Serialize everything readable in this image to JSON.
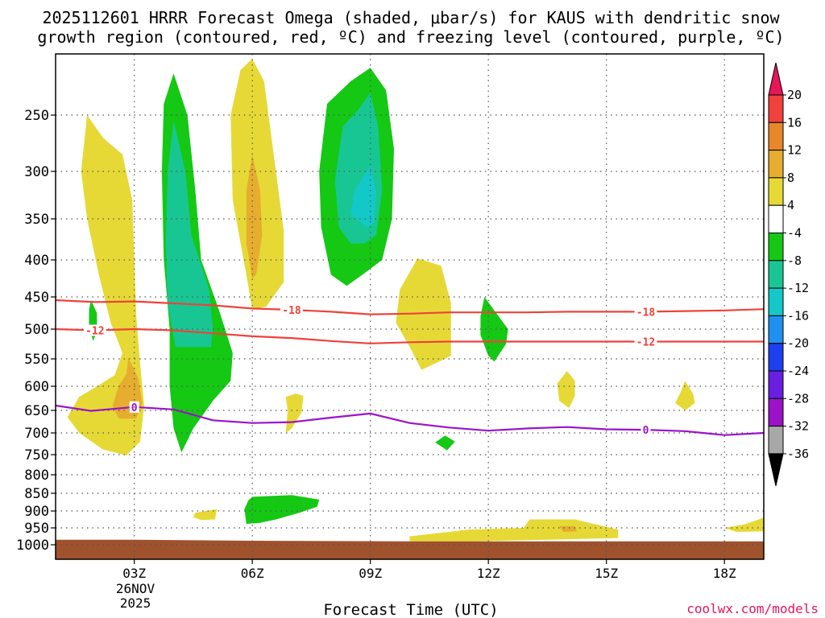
{
  "chart_data": {
    "type": "heatmap",
    "title_line1": "2025112601 HRRR Forecast Omega (shaded, μbar/s) for KAUS with dendritic snow",
    "title_line2": "growth region (contoured, red, ºC) and freezing level (contoured, purple, ºC)",
    "xlabel": "Forecast Time (UTC)",
    "date_label": [
      "26NOV",
      "2025"
    ],
    "watermark": "coolwx.com/models",
    "x_range_hours": [
      1,
      19
    ],
    "x_ticks": [
      {
        "hour": 3,
        "label": "03Z"
      },
      {
        "hour": 6,
        "label": "06Z"
      },
      {
        "hour": 9,
        "label": "09Z"
      },
      {
        "hour": 12,
        "label": "12Z"
      },
      {
        "hour": 15,
        "label": "15Z"
      },
      {
        "hour": 18,
        "label": "18Z"
      }
    ],
    "y_range_hpa": [
      1030,
      200
    ],
    "y_ticks": [
      {
        "p": 250,
        "label": "250"
      },
      {
        "p": 300,
        "label": "300"
      },
      {
        "p": 350,
        "label": "350"
      },
      {
        "p": 400,
        "label": "400"
      },
      {
        "p": 450,
        "label": "450"
      },
      {
        "p": 500,
        "label": "500"
      },
      {
        "p": 550,
        "label": "550"
      },
      {
        "p": 600,
        "label": "600"
      },
      {
        "p": 650,
        "label": "650"
      },
      {
        "p": 700,
        "label": "700"
      },
      {
        "p": 750,
        "label": "750"
      },
      {
        "p": 800,
        "label": "800"
      },
      {
        "p": 850,
        "label": "850"
      },
      {
        "p": 900,
        "label": "900"
      },
      {
        "p": 950,
        "label": "950"
      },
      {
        "p": 1000,
        "label": "1000"
      }
    ],
    "colorbar": {
      "levels": [
        {
          "label": "20",
          "color": "#e8155a"
        },
        {
          "label": "16",
          "color": "#f0413c"
        },
        {
          "label": "12",
          "color": "#e8862a"
        },
        {
          "label": "8",
          "color": "#e6ad2f"
        },
        {
          "label": "4",
          "color": "#e6d936"
        },
        {
          "label": "-4",
          "color": "#ffffff"
        },
        {
          "label": "-8",
          "color": "#14c814"
        },
        {
          "label": "-12",
          "color": "#18c694"
        },
        {
          "label": "-16",
          "color": "#13c8c8"
        },
        {
          "label": "-20",
          "color": "#1e90ef"
        },
        {
          "label": "-24",
          "color": "#1e3ff0"
        },
        {
          "label": "-28",
          "color": "#6a1ee0"
        },
        {
          "label": "-32",
          "color": "#9b12c8"
        },
        {
          "label": "-36",
          "color": "#a8a8a8"
        }
      ],
      "top_cap_color": "#e8155a",
      "bottom_cap_color": "#000000"
    },
    "contours": [
      {
        "name": "contour-minus18",
        "label": "-18",
        "color": "#f0413c",
        "points": [
          [
            1,
            455
          ],
          [
            2,
            458
          ],
          [
            3,
            457
          ],
          [
            4,
            460
          ],
          [
            5,
            463
          ],
          [
            6,
            468
          ],
          [
            7,
            470
          ],
          [
            8,
            473
          ],
          [
            9,
            477
          ],
          [
            10,
            476
          ],
          [
            11,
            474
          ],
          [
            12,
            474
          ],
          [
            13,
            474
          ],
          [
            14,
            473
          ],
          [
            15,
            473
          ],
          [
            16,
            473
          ],
          [
            17,
            472
          ],
          [
            18,
            471
          ],
          [
            19,
            469
          ]
        ],
        "labels_at": [
          7,
          16
        ]
      },
      {
        "name": "contour-minus12",
        "label": "-12",
        "color": "#f0413c",
        "points": [
          [
            1,
            500
          ],
          [
            2,
            502
          ],
          [
            3,
            500
          ],
          [
            4,
            502
          ],
          [
            5,
            507
          ],
          [
            6,
            512
          ],
          [
            7,
            515
          ],
          [
            8,
            520
          ],
          [
            9,
            524
          ],
          [
            10,
            522
          ],
          [
            11,
            521
          ],
          [
            12,
            521
          ],
          [
            13,
            521
          ],
          [
            14,
            521
          ],
          [
            15,
            521
          ],
          [
            16,
            521
          ],
          [
            17,
            521
          ],
          [
            18,
            521
          ],
          [
            19,
            521
          ]
        ],
        "labels_at": [
          2,
          16
        ]
      },
      {
        "name": "contour-freezing",
        "label": "0",
        "color": "#9b12c8",
        "points": [
          [
            1,
            640
          ],
          [
            1.9,
            651
          ],
          [
            3,
            643
          ],
          [
            4,
            648
          ],
          [
            5,
            672
          ],
          [
            6,
            678
          ],
          [
            7,
            676
          ],
          [
            8,
            666
          ],
          [
            9,
            657
          ],
          [
            10,
            678
          ],
          [
            11,
            688
          ],
          [
            12,
            695
          ],
          [
            13,
            690
          ],
          [
            14,
            687
          ],
          [
            15,
            692
          ],
          [
            16,
            693
          ],
          [
            17,
            696
          ],
          [
            18,
            705
          ],
          [
            19,
            700
          ]
        ],
        "labels_at": [
          3,
          16
        ]
      }
    ],
    "omega_regions": [
      {
        "level": "4",
        "color": "#e6d936",
        "poly": [
          [
            1.8,
            250
          ],
          [
            2.2,
            270
          ],
          [
            2.7,
            285
          ],
          [
            2.95,
            330
          ],
          [
            3,
            400
          ],
          [
            3.05,
            480
          ],
          [
            3.15,
            560
          ],
          [
            3.25,
            640
          ],
          [
            3.15,
            720
          ],
          [
            2.8,
            752
          ],
          [
            2.2,
            738
          ],
          [
            1.6,
            700
          ],
          [
            1.3,
            665
          ],
          [
            1.6,
            622
          ],
          [
            2.1,
            598
          ],
          [
            2.5,
            580
          ],
          [
            2.7,
            540
          ],
          [
            2.4,
            490
          ],
          [
            2.1,
            420
          ],
          [
            1.8,
            350
          ],
          [
            1.65,
            300
          ]
        ]
      },
      {
        "level": "8",
        "color": "#e6ad2f",
        "poly": [
          [
            2.85,
            548
          ],
          [
            3.1,
            585
          ],
          [
            3.2,
            635
          ],
          [
            3.05,
            668
          ],
          [
            2.6,
            668
          ],
          [
            2.45,
            640
          ],
          [
            2.6,
            600
          ],
          [
            2.8,
            578
          ]
        ]
      },
      {
        "level": "4",
        "color": "#e6d936",
        "poly": [
          [
            6,
            200
          ],
          [
            6.3,
            220
          ],
          [
            6.6,
            300
          ],
          [
            6.8,
            365
          ],
          [
            6.8,
            430
          ],
          [
            6.35,
            465
          ],
          [
            6,
            470
          ],
          [
            5.85,
            420
          ],
          [
            5.5,
            330
          ],
          [
            5.45,
            250
          ],
          [
            5.7,
            210
          ]
        ]
      },
      {
        "level": "8",
        "color": "#e6ad2f",
        "poly": [
          [
            6,
            285
          ],
          [
            6.2,
            320
          ],
          [
            6.25,
            370
          ],
          [
            6.1,
            420
          ],
          [
            6,
            425
          ],
          [
            5.85,
            380
          ],
          [
            5.85,
            320
          ]
        ]
      },
      {
        "level": "-4",
        "color": "#14c814",
        "poly": [
          [
            4,
            213
          ],
          [
            4.35,
            250
          ],
          [
            4.55,
            320
          ],
          [
            4.7,
            400
          ],
          [
            5.15,
            470
          ],
          [
            5.5,
            540
          ],
          [
            5.45,
            590
          ],
          [
            5,
            630
          ],
          [
            4.5,
            690
          ],
          [
            4.2,
            745
          ],
          [
            4,
            690
          ],
          [
            3.9,
            600
          ],
          [
            3.9,
            500
          ],
          [
            3.75,
            400
          ],
          [
            3.7,
            300
          ],
          [
            3.75,
            240
          ]
        ]
      },
      {
        "level": "-8",
        "color": "#18c694",
        "poly": [
          [
            4,
            255
          ],
          [
            4.3,
            300
          ],
          [
            4.45,
            370
          ],
          [
            4.9,
            440
          ],
          [
            5,
            500
          ],
          [
            4.95,
            530
          ],
          [
            4.05,
            530
          ],
          [
            3.85,
            460
          ],
          [
            3.8,
            380
          ],
          [
            3.85,
            300
          ]
        ]
      },
      {
        "level": "4",
        "color": "#e6d936",
        "poly": [
          [
            10.2,
            398
          ],
          [
            10.8,
            408
          ],
          [
            11.05,
            460
          ],
          [
            11.05,
            545
          ],
          [
            10.6,
            560
          ],
          [
            10.3,
            570
          ],
          [
            10,
            530
          ],
          [
            9.65,
            490
          ],
          [
            9.75,
            440
          ]
        ]
      },
      {
        "level": "-4",
        "color": "#14c814",
        "poly": [
          [
            9,
            208
          ],
          [
            9.4,
            228
          ],
          [
            9.6,
            280
          ],
          [
            9.55,
            350
          ],
          [
            9.3,
            400
          ],
          [
            8.8,
            420
          ],
          [
            8.4,
            435
          ],
          [
            8,
            420
          ],
          [
            7.75,
            360
          ],
          [
            7.7,
            300
          ],
          [
            7.9,
            240
          ],
          [
            8.5,
            220
          ]
        ]
      },
      {
        "level": "-8",
        "color": "#18c694",
        "poly": [
          [
            9,
            230
          ],
          [
            9.2,
            260
          ],
          [
            9.3,
            320
          ],
          [
            9.15,
            370
          ],
          [
            8.85,
            380
          ],
          [
            8.5,
            380
          ],
          [
            8.2,
            360
          ],
          [
            8.1,
            310
          ],
          [
            8.3,
            260
          ],
          [
            8.7,
            245
          ]
        ]
      },
      {
        "level": "-12",
        "color": "#13c8c8",
        "poly": [
          [
            9,
            295
          ],
          [
            9.15,
            320
          ],
          [
            9.1,
            355
          ],
          [
            8.9,
            360
          ],
          [
            8.5,
            345
          ],
          [
            8.6,
            320
          ]
        ]
      },
      {
        "level": "4",
        "color": "#e6d936",
        "poly": [
          [
            7.1,
            615
          ],
          [
            7.3,
            620
          ],
          [
            7.25,
            655
          ],
          [
            7,
            690
          ],
          [
            6.85,
            700
          ],
          [
            6.9,
            650
          ],
          [
            6.85,
            622
          ]
        ]
      },
      {
        "level": "-4",
        "color": "#14c814",
        "poly": [
          [
            11.9,
            450
          ],
          [
            12.2,
            475
          ],
          [
            12.5,
            500
          ],
          [
            12.45,
            525
          ],
          [
            12.15,
            555
          ],
          [
            12,
            545
          ],
          [
            11.8,
            510
          ],
          [
            11.8,
            480
          ]
        ]
      },
      {
        "level": "-4",
        "color": "#14c814",
        "poly": [
          [
            1.9,
            455
          ],
          [
            2.05,
            475
          ],
          [
            2.05,
            505
          ],
          [
            1.95,
            520
          ],
          [
            1.85,
            495
          ],
          [
            1.85,
            470
          ]
        ]
      },
      {
        "level": "-4",
        "color": "#14c814",
        "poly": [
          [
            10.9,
            706
          ],
          [
            11.15,
            720
          ],
          [
            10.95,
            740
          ],
          [
            10.65,
            722
          ]
        ]
      },
      {
        "level": "4",
        "color": "#e6d936",
        "poly": [
          [
            14,
            572
          ],
          [
            14.2,
            590
          ],
          [
            14.2,
            620
          ],
          [
            14.05,
            645
          ],
          [
            13.8,
            630
          ],
          [
            13.75,
            595
          ]
        ]
      },
      {
        "level": "4",
        "color": "#e6d936",
        "poly": [
          [
            17,
            590
          ],
          [
            17.2,
            615
          ],
          [
            17.25,
            635
          ],
          [
            17,
            650
          ],
          [
            16.75,
            635
          ],
          [
            16.9,
            610
          ]
        ]
      },
      {
        "level": "-4",
        "color": "#14c814",
        "poly": [
          [
            6,
            860
          ],
          [
            7,
            855
          ],
          [
            7.7,
            868
          ],
          [
            7.65,
            888
          ],
          [
            7.2,
            905
          ],
          [
            6.6,
            925
          ],
          [
            6.2,
            935
          ],
          [
            5.85,
            938
          ],
          [
            5.8,
            895
          ],
          [
            5.9,
            870
          ]
        ]
      },
      {
        "level": "4",
        "color": "#e6d936",
        "poly": [
          [
            4.55,
            905
          ],
          [
            5.1,
            895
          ],
          [
            5.05,
            925
          ],
          [
            4.7,
            927
          ],
          [
            4.5,
            918
          ]
        ]
      },
      {
        "level": "4",
        "color": "#e6d936",
        "poly": [
          [
            10,
            975
          ],
          [
            11.5,
            955
          ],
          [
            12.9,
            950
          ],
          [
            13.05,
            925
          ],
          [
            14.2,
            925
          ],
          [
            15.3,
            955
          ],
          [
            15.3,
            980
          ],
          [
            13.5,
            985
          ],
          [
            11.5,
            990
          ],
          [
            10,
            990
          ]
        ]
      },
      {
        "level": "8",
        "color": "#e6ad2f",
        "poly": [
          [
            13.8,
            945
          ],
          [
            14.2,
            945
          ],
          [
            14.25,
            960
          ],
          [
            13.9,
            962
          ]
        ]
      },
      {
        "level": "4",
        "color": "#e6d936",
        "poly": [
          [
            19,
            920
          ],
          [
            19.05,
            940
          ],
          [
            19,
            960
          ],
          [
            18.3,
            962
          ],
          [
            18,
            950
          ],
          [
            18.5,
            940
          ]
        ]
      }
    ],
    "ground": {
      "color": "#a0522d",
      "top_hpa": [
        [
          1,
          985
        ],
        [
          3,
          985
        ],
        [
          6,
          988
        ],
        [
          10,
          990
        ],
        [
          19,
          990
        ]
      ]
    }
  }
}
